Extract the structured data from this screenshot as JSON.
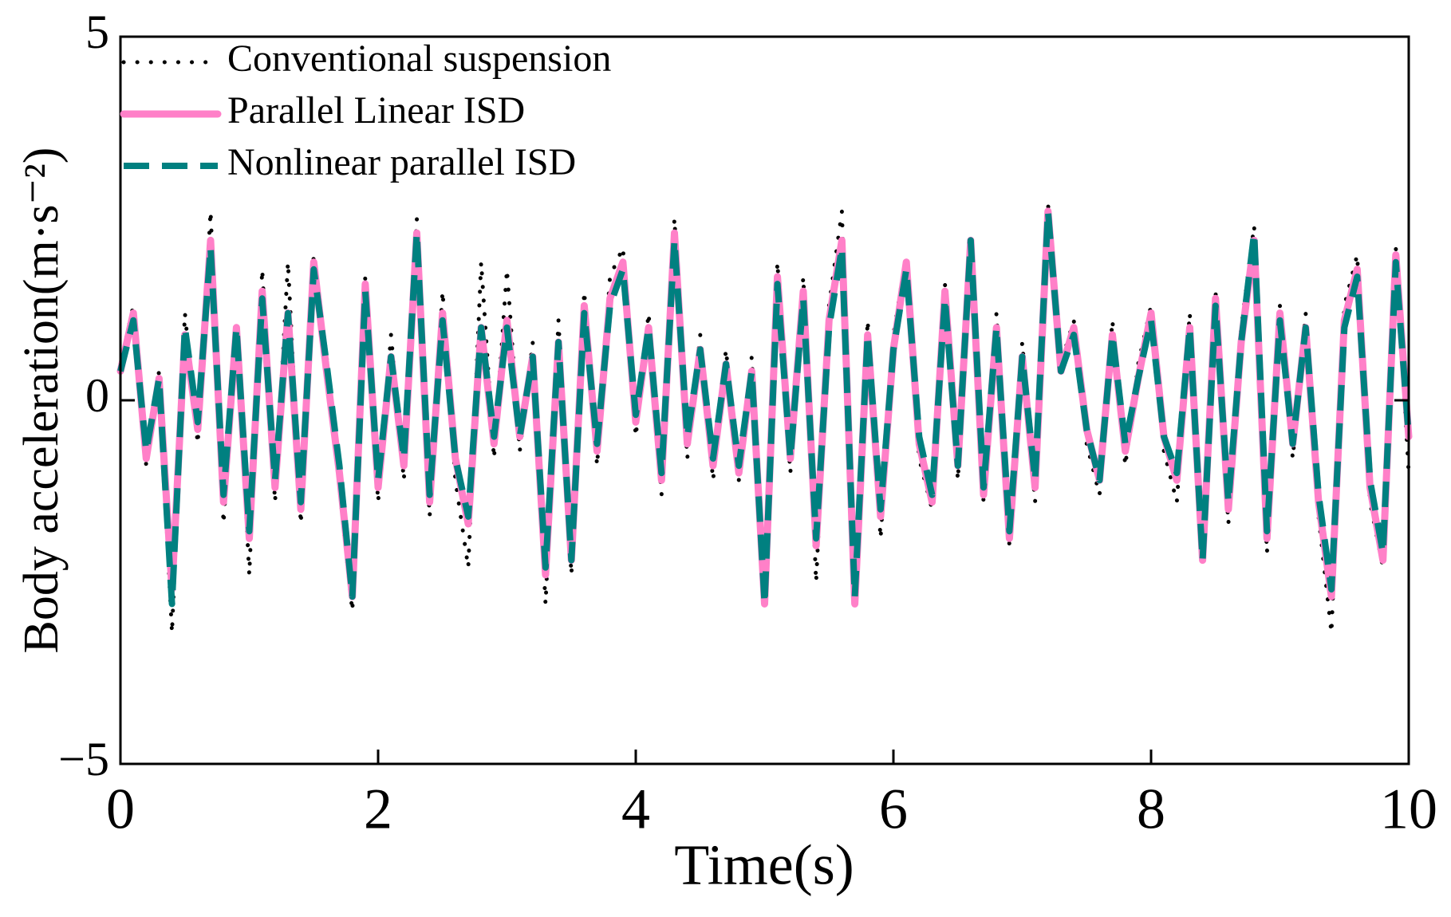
{
  "chart_data": {
    "type": "line",
    "xlabel": "Time(s)",
    "ylabel": "Body acceleration(m·s⁻²)",
    "x": [
      0,
      0.1,
      0.2,
      0.3,
      0.4,
      0.5,
      0.6,
      0.7,
      0.8,
      0.9,
      1,
      1.1,
      1.2,
      1.3,
      1.4,
      1.5,
      1.6,
      1.7,
      1.8,
      1.9,
      2,
      2.1,
      2.2,
      2.3,
      2.4,
      2.5,
      2.6,
      2.7,
      2.8,
      2.9,
      3,
      3.1,
      3.2,
      3.3,
      3.4,
      3.5,
      3.6,
      3.7,
      3.8,
      3.9,
      4,
      4.1,
      4.2,
      4.3,
      4.4,
      4.5,
      4.6,
      4.7,
      4.8,
      4.9,
      5,
      5.1,
      5.2,
      5.3,
      5.4,
      5.5,
      5.6,
      5.7,
      5.8,
      5.9,
      6,
      6.1,
      6.2,
      6.3,
      6.4,
      6.5,
      6.6,
      6.7,
      6.8,
      6.9,
      7,
      7.1,
      7.2,
      7.3,
      7.4,
      7.5,
      7.6,
      7.7,
      7.8,
      7.9,
      8,
      8.1,
      8.2,
      8.3,
      8.4,
      8.5,
      8.6,
      8.7,
      8.8,
      8.9,
      9,
      9.1,
      9.2,
      9.3,
      9.4,
      9.5,
      9.6,
      9.7,
      9.8,
      9.9,
      10
    ],
    "series": [
      {
        "name": "Conventional suspension",
        "color": "#000000",
        "style": "dotted",
        "values": [
          0.5,
          1.3,
          -0.9,
          0.4,
          -3.2,
          1.2,
          -0.6,
          2.6,
          -1.7,
          1.1,
          -2.4,
          1.8,
          -1.4,
          1.9,
          -1.7,
          2.0,
          0.6,
          -1.2,
          -2.9,
          1.7,
          -1.4,
          0.9,
          -1.1,
          2.5,
          -1.6,
          1.5,
          -1.1,
          -2.3,
          1.9,
          -0.8,
          1.8,
          -0.7,
          0.8,
          -2.8,
          1.1,
          -2.4,
          1.5,
          -0.9,
          1.7,
          2.1,
          -0.5,
          1.2,
          -1.3,
          2.5,
          -0.8,
          0.9,
          -1.1,
          0.7,
          -1.1,
          0.6,
          -2.8,
          1.9,
          -1.0,
          1.7,
          -2.5,
          1.3,
          2.6,
          -2.8,
          1.1,
          -1.9,
          0.9,
          2.0,
          -0.8,
          -1.5,
          1.6,
          -1.1,
          2.2,
          -1.4,
          1.2,
          -2.0,
          0.8,
          -1.4,
          2.7,
          0.5,
          1.1,
          -0.6,
          -1.3,
          1.1,
          -0.9,
          0.5,
          1.3,
          -0.7,
          -1.4,
          1.2,
          -2.3,
          1.5,
          -1.7,
          1.0,
          2.4,
          -2.1,
          1.3,
          -0.8,
          1.2,
          -1.6,
          -3.2,
          1.3,
          2.0,
          -1.4,
          -2.3,
          2.1,
          -1.0
        ]
      },
      {
        "name": "Parallel Linear ISD",
        "color": "#ff80c8",
        "style": "solid",
        "values": [
          0.4,
          1.2,
          -0.8,
          0.3,
          -2.6,
          0.9,
          -0.4,
          2.2,
          -1.4,
          1.0,
          -1.9,
          1.5,
          -1.2,
          1.2,
          -1.5,
          1.9,
          0.4,
          -1.0,
          -2.7,
          1.6,
          -1.2,
          0.6,
          -0.9,
          2.3,
          -1.4,
          1.2,
          -0.8,
          -1.7,
          1.0,
          -0.6,
          1.1,
          -0.5,
          0.6,
          -2.4,
          0.8,
          -2.2,
          1.3,
          -0.7,
          1.4,
          1.9,
          -0.3,
          1.0,
          -1.1,
          2.3,
          -0.6,
          0.7,
          -0.9,
          0.5,
          -1.0,
          0.4,
          -2.8,
          1.7,
          -0.8,
          1.5,
          -2.0,
          1.1,
          2.2,
          -2.8,
          0.9,
          -1.6,
          0.7,
          1.9,
          -0.6,
          -1.4,
          1.5,
          -0.9,
          2.2,
          -1.3,
          1.0,
          -1.9,
          0.6,
          -1.2,
          2.6,
          0.4,
          1.0,
          -0.4,
          -1.1,
          0.9,
          -0.7,
          0.3,
          1.2,
          -0.5,
          -1.1,
          1.0,
          -2.2,
          1.4,
          -1.5,
          0.8,
          2.2,
          -1.9,
          1.2,
          -0.6,
          1.0,
          -1.4,
          -2.7,
          1.1,
          1.8,
          -1.2,
          -2.2,
          2.0,
          -0.5
        ]
      },
      {
        "name": "Nonlinear parallel ISD",
        "color": "#008080",
        "style": "dashed",
        "values": [
          0.4,
          1.1,
          -0.7,
          0.3,
          -2.8,
          1.0,
          -0.3,
          2.1,
          -1.3,
          1.0,
          -1.8,
          1.4,
          -1.1,
          1.2,
          -1.4,
          1.8,
          0.5,
          -0.9,
          -2.7,
          1.5,
          -1.1,
          0.6,
          -0.8,
          2.3,
          -1.3,
          1.1,
          -0.8,
          -1.6,
          1.0,
          -0.5,
          1.0,
          -0.5,
          0.6,
          -2.3,
          0.8,
          -2.2,
          1.2,
          -0.6,
          1.3,
          1.8,
          -0.2,
          1.0,
          -1.0,
          2.2,
          -0.5,
          0.7,
          -0.8,
          0.5,
          -0.9,
          0.4,
          -2.8,
          1.6,
          -0.8,
          1.4,
          -1.9,
          1.0,
          2.1,
          -2.7,
          0.9,
          -1.5,
          0.7,
          1.8,
          -0.5,
          -1.3,
          1.4,
          -0.9,
          2.2,
          -1.2,
          1.0,
          -1.8,
          0.6,
          -1.1,
          2.6,
          0.4,
          0.9,
          -0.4,
          -1.1,
          0.9,
          -0.6,
          0.3,
          1.1,
          -0.5,
          -1.0,
          1.0,
          -2.2,
          1.3,
          -1.4,
          0.8,
          2.3,
          -1.8,
          1.1,
          -0.6,
          1.0,
          -1.3,
          -2.6,
          1.0,
          1.7,
          -1.1,
          -2.1,
          1.9,
          -0.5
        ]
      }
    ],
    "xlim": [
      0,
      10
    ],
    "xticks": [
      0,
      2,
      4,
      6,
      8,
      10
    ],
    "ylim": [
      -5,
      5
    ],
    "yticks": [
      {
        "value": -5,
        "label": "−5"
      },
      0,
      5
    ],
    "legend": "upper left",
    "grid": false
  }
}
